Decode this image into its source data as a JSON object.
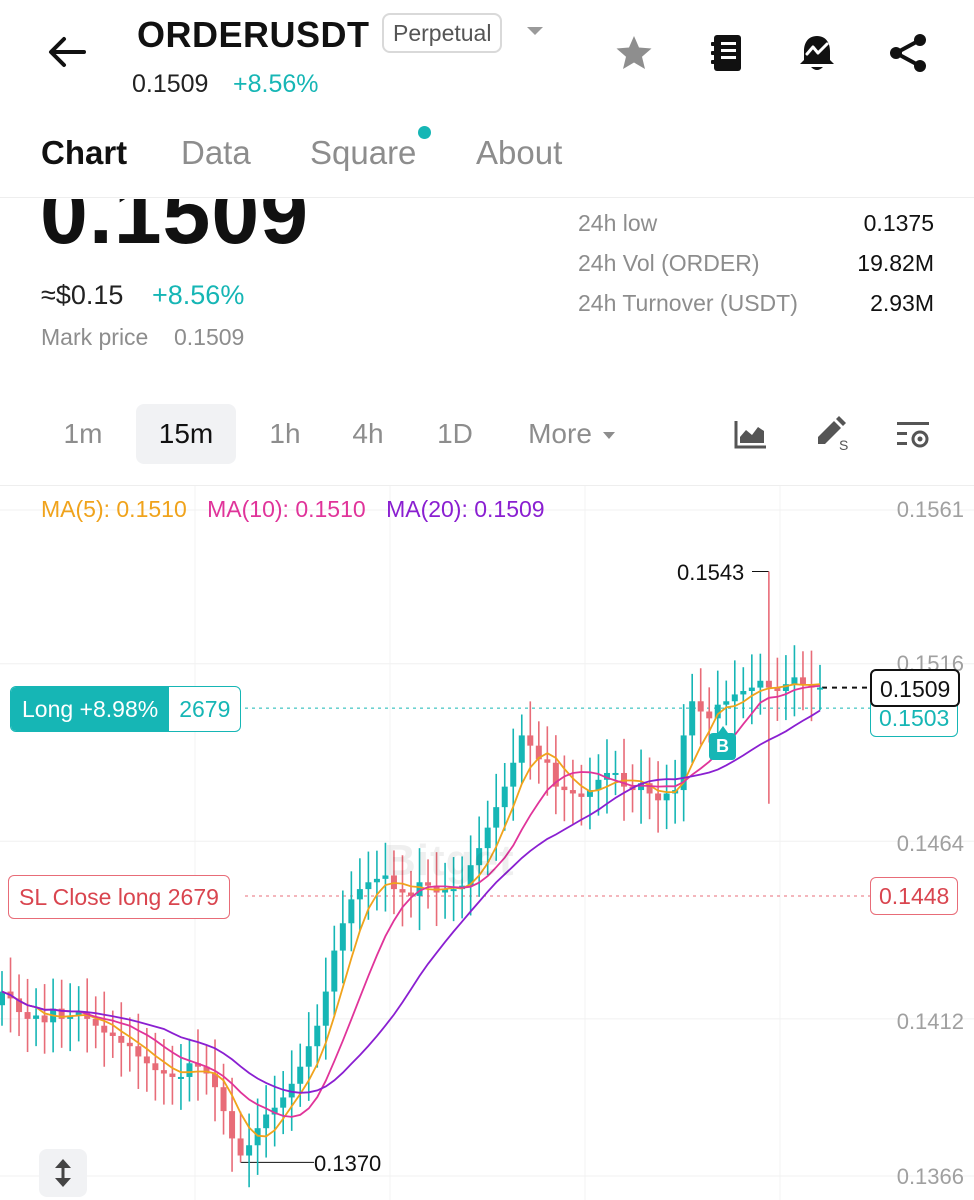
{
  "header": {
    "symbol": "ORDERUSDT",
    "contract_type": "Perpetual",
    "last_price": "0.1509",
    "change_pct": "+8.56%",
    "icons": [
      "back-arrow-icon",
      "caret-down-icon",
      "star-icon",
      "notebook-icon",
      "price-alert-bell-icon",
      "share-icon"
    ]
  },
  "tabs": [
    {
      "label": "Chart",
      "active": true
    },
    {
      "label": "Data",
      "active": false
    },
    {
      "label": "Square",
      "active": false,
      "has_dot": true
    },
    {
      "label": "About",
      "active": false
    }
  ],
  "price_block": {
    "price": "0.1509",
    "usd_price": "≈$0.15",
    "usd_change": "+8.56%",
    "mark_label": "Mark price",
    "mark_value": "0.1509"
  },
  "stats": [
    {
      "label": "24h low",
      "value": "0.1375"
    },
    {
      "label": "24h Vol (ORDER)",
      "value": "19.82M"
    },
    {
      "label": "24h Turnover (USDT)",
      "value": "2.93M"
    }
  ],
  "intervals": [
    {
      "label": "1m",
      "active": false
    },
    {
      "label": "15m",
      "active": true
    },
    {
      "label": "1h",
      "active": false
    },
    {
      "label": "4h",
      "active": false
    },
    {
      "label": "1D",
      "active": false
    },
    {
      "label": "More",
      "active": false
    }
  ],
  "toolbar_icons": [
    "chart-type-icon",
    "drawing-pen-icon",
    "indicator-settings-icon"
  ],
  "colors": {
    "up": "#16b6b5",
    "down": "#e86c78",
    "ma5": "#f0a31c",
    "ma10": "#e0349a",
    "ma20": "#8a1fd1"
  },
  "chart": {
    "ma": [
      {
        "label": "MA(5): 0.1510",
        "color": "#f0a31c"
      },
      {
        "label": "MA(10): 0.1510",
        "color": "#e0349a"
      },
      {
        "label": "MA(20): 0.1509",
        "color": "#8a1fd1"
      }
    ],
    "axis_labels": [
      "0.1561",
      "0.1516",
      "0.1464",
      "0.1412",
      "0.1366"
    ],
    "position": {
      "label": "Long +8.98%",
      "qty": "2679",
      "entry_price_tag": "0.1503"
    },
    "stop_loss": {
      "label": "SL Close long 2679",
      "price": "0.1448"
    },
    "current_price_tag": "0.1509",
    "high_label": "0.1543",
    "low_label": "0.1370",
    "buy_marker": "B",
    "watermark": "Bitget"
  },
  "chart_data": {
    "type": "candlestick",
    "interval": "15m",
    "ylim": [
      0.1366,
      0.1561
    ],
    "y_ticks": [
      0.1561,
      0.1516,
      0.1464,
      0.1412,
      0.1366
    ],
    "close_prices": [
      0.142,
      0.1418,
      0.1414,
      0.1412,
      0.1413,
      0.1411,
      0.1415,
      0.1412,
      0.1413,
      0.1414,
      0.1412,
      0.141,
      0.1408,
      0.1407,
      0.1405,
      0.1404,
      0.1401,
      0.1399,
      0.1397,
      0.1396,
      0.1395,
      0.1395,
      0.1399,
      0.1398,
      0.1396,
      0.1392,
      0.1385,
      0.1377,
      0.1372,
      0.1375,
      0.138,
      0.1384,
      0.1386,
      0.1389,
      0.1393,
      0.1398,
      0.1404,
      0.141,
      0.142,
      0.1432,
      0.144,
      0.1447,
      0.145,
      0.1452,
      0.1453,
      0.1454,
      0.145,
      0.1449,
      0.1448,
      0.1452,
      0.1451,
      0.1449,
      0.145,
      0.145,
      0.1451,
      0.1457,
      0.1462,
      0.1468,
      0.1474,
      0.148,
      0.1487,
      0.1495,
      0.1492,
      0.1488,
      0.1487,
      0.148,
      0.1479,
      0.1478,
      0.1477,
      0.1479,
      0.1482,
      0.1484,
      0.1484,
      0.148,
      0.1479,
      0.1481,
      0.1478,
      0.1476,
      0.1478,
      0.1479,
      0.1495,
      0.1505,
      0.1502,
      0.15,
      0.1504,
      0.1505,
      0.1507,
      0.1508,
      0.1509,
      0.1511,
      0.1509,
      0.1508,
      0.151,
      0.1512,
      0.151,
      0.1509,
      0.1509
    ],
    "high": 0.1543,
    "low": 0.137,
    "position_entry": 0.1503,
    "stop_loss": 0.1448,
    "last_price": 0.1509
  }
}
